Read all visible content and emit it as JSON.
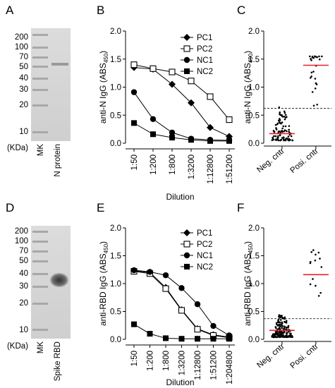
{
  "figure": {
    "panels": [
      {
        "letter": "A",
        "type": "gel",
        "markers": [
          "200",
          "100",
          "70",
          "50",
          "40",
          "30",
          "20",
          "10",
          "(KDa)"
        ],
        "lanes": [
          "MK",
          "N protein"
        ]
      },
      {
        "letter": "B",
        "type": "line",
        "chart_index": 0
      },
      {
        "letter": "C",
        "type": "scatter",
        "chart_index": 1
      },
      {
        "letter": "D",
        "type": "gel",
        "markers": [
          "200",
          "100",
          "70",
          "50",
          "40",
          "30",
          "20",
          "10",
          "(KDa)"
        ],
        "lanes": [
          "MK",
          "Spike RBD"
        ]
      },
      {
        "letter": "E",
        "type": "line",
        "chart_index": 2
      },
      {
        "letter": "F",
        "type": "scatter",
        "chart_index": 3
      }
    ]
  },
  "chart_data": [
    {
      "type": "line",
      "ylabel_main": "anti-N IgG (ABS",
      "ylabel_sub": "450",
      "ylabel_end": ")",
      "xlabel": "Dilution",
      "ylim": [
        0,
        2.0
      ],
      "yticks": [
        "0.0",
        "0.5",
        "1.0",
        "1.5",
        "2.0"
      ],
      "categories": [
        "1:50",
        "1:200",
        "1:800",
        "1:3200",
        "1:12800",
        "1:51200"
      ],
      "legend": "top-right",
      "series": [
        {
          "name": "PC1",
          "marker": "diamond",
          "values": [
            1.35,
            1.32,
            1.05,
            0.72,
            0.28,
            0.12
          ]
        },
        {
          "name": "PC2",
          "marker": "open-square",
          "values": [
            1.4,
            1.33,
            1.27,
            1.11,
            0.83,
            0.42
          ]
        },
        {
          "name": "NC1",
          "marker": "circle",
          "values": [
            0.91,
            0.43,
            0.19,
            0.08,
            0.06,
            0.05
          ]
        },
        {
          "name": "NC2",
          "marker": "square",
          "values": [
            0.36,
            0.16,
            0.1,
            0.06,
            0.04,
            0.04
          ]
        }
      ]
    },
    {
      "type": "scatter",
      "ylabel_main": "anti-N IgG (ABS",
      "ylabel_sub": "450",
      "ylabel_end": ")",
      "ylim": [
        0,
        2.0
      ],
      "yticks": [
        "0.0",
        "0.5",
        "1.0",
        "1.5",
        "2.0"
      ],
      "categories": [
        "Neg. cntr",
        "Posi. cntr"
      ],
      "cutoff": 0.62,
      "groups": [
        {
          "name": "Neg. cntr",
          "median": 0.17,
          "n": 90,
          "min": 0.05,
          "max": 0.65
        },
        {
          "name": "Posi. cntr",
          "median": 1.39,
          "n": 24,
          "min": 0.65,
          "max": 1.55
        }
      ]
    },
    {
      "type": "line",
      "ylabel_main": "anti-RBD IgG (ABS",
      "ylabel_sub": "450",
      "ylabel_end": ")",
      "xlabel": "Dilution",
      "ylim": [
        0,
        2.0
      ],
      "yticks": [
        "0.0",
        "0.5",
        "1.0",
        "1.5",
        "2.0"
      ],
      "categories": [
        "1:50",
        "1:200",
        "1:800",
        "1:3200",
        "1:12800",
        "1:51200",
        "1:204800"
      ],
      "legend": "top-right",
      "series": [
        {
          "name": "PC1",
          "marker": "diamond",
          "values": [
            1.23,
            1.2,
            0.93,
            0.53,
            0.19,
            0.08,
            0.04
          ]
        },
        {
          "name": "PC2",
          "marker": "open-square",
          "values": [
            1.22,
            1.18,
            0.91,
            0.52,
            0.18,
            0.07,
            0.03
          ]
        },
        {
          "name": "NC1",
          "marker": "circle",
          "values": [
            1.24,
            1.21,
            1.15,
            0.92,
            0.63,
            0.24,
            0.07
          ]
        },
        {
          "name": "NC2",
          "marker": "square",
          "values": [
            0.27,
            0.1,
            0.02,
            0.01,
            0.01,
            0.01,
            0.01
          ]
        }
      ]
    },
    {
      "type": "scatter",
      "ylabel_main": "anti-RBD IgG (ABS",
      "ylabel_sub": "450",
      "ylabel_end": ")",
      "ylim": [
        0,
        2.0
      ],
      "yticks": [
        "0.0",
        "0.5",
        "1.0",
        "1.5",
        "2.0"
      ],
      "categories": [
        "Neg. cntr",
        "Posi. cntr"
      ],
      "cutoff": 0.37,
      "groups": [
        {
          "name": "Neg. cntr",
          "median": 0.16,
          "n": 160,
          "min": 0.04,
          "max": 0.44
        },
        {
          "name": "Posi. cntr",
          "median": 1.16,
          "n": 14,
          "min": 0.78,
          "max": 1.6
        }
      ]
    }
  ]
}
